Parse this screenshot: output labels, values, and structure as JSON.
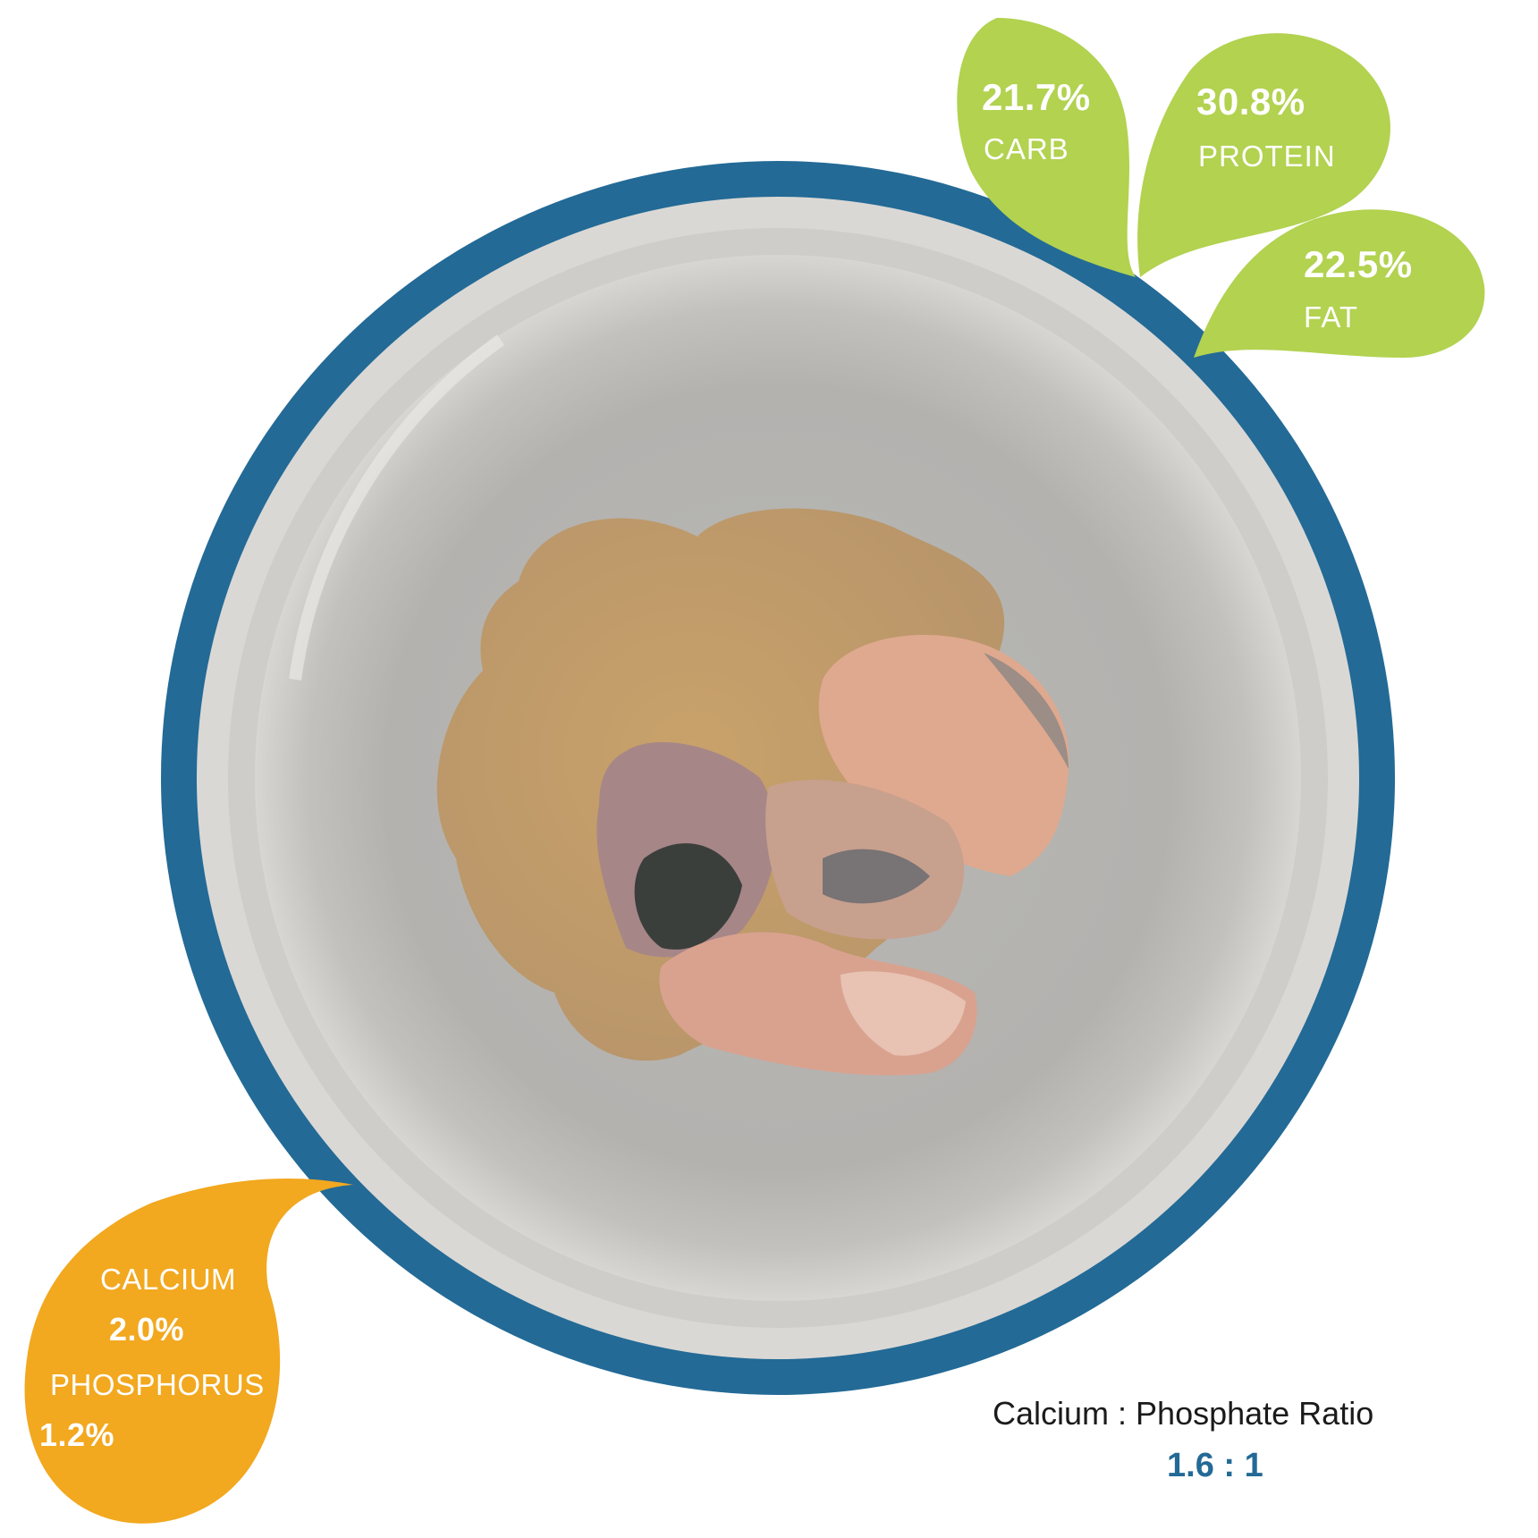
{
  "macros": {
    "carb": {
      "value": "21.7%",
      "label": "CARB"
    },
    "protein": {
      "value": "30.8%",
      "label": "PROTEIN"
    },
    "fat": {
      "value": "22.5%",
      "label": "FAT"
    }
  },
  "minerals": {
    "calcium": {
      "label": "CALCIUM",
      "value": "2.0%"
    },
    "phosphorus": {
      "label": "PHOSPHORUS",
      "value": "1.2%"
    }
  },
  "ratio": {
    "title": "Calcium : Phosphate Ratio",
    "value": "1.6 : 1"
  },
  "colors": {
    "ring": "#236a96",
    "bowl_rim": "#d4d2cf",
    "bowl_inner": "#b5b4b1",
    "macro_drop": "#b2d250",
    "mineral_drop": "#f2a81f",
    "food_powder": "#c8a572",
    "fish": "#d9a189"
  }
}
